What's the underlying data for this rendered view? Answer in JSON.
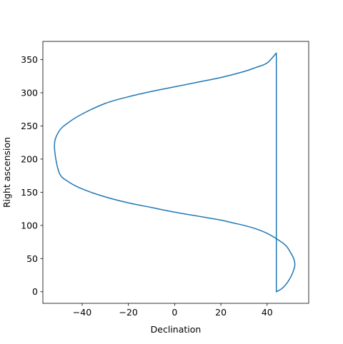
{
  "chart_data": {
    "type": "line",
    "title": "",
    "xlabel": "Declination",
    "ylabel": "Right ascension",
    "xlim": [
      -57,
      58
    ],
    "ylim": [
      -17.5,
      377.5
    ],
    "xticks": [
      -40,
      -20,
      0,
      20,
      40
    ],
    "xtick_labels": [
      "−40",
      "−20",
      "0",
      "20",
      "40"
    ],
    "yticks": [
      0,
      50,
      100,
      150,
      200,
      250,
      300,
      350
    ],
    "ytick_labels": [
      "0",
      "50",
      "100",
      "150",
      "200",
      "250",
      "300",
      "350"
    ],
    "grid": false,
    "legend": "none",
    "series": [
      {
        "color": "#1f77b4",
        "x": [
          44,
          46.5,
          49,
          51,
          52,
          51.5,
          50,
          48,
          44,
          40,
          35,
          30,
          25,
          20,
          15,
          10,
          0,
          -10,
          -20,
          -30,
          -40,
          -46,
          -50,
          -52,
          -50,
          -46,
          -40,
          -30,
          -20,
          -10,
          0,
          10,
          20,
          30,
          35,
          40,
          44,
          44,
          44
        ],
        "y": [
          0,
          5,
          15,
          28,
          40,
          50,
          60,
          70,
          80,
          88,
          95,
          100,
          104,
          108,
          111,
          114,
          120,
          127,
          134,
          143,
          155,
          166,
          180,
          220,
          242,
          255,
          268,
          284,
          294,
          302,
          309,
          316,
          323,
          332,
          338,
          345,
          360,
          200,
          0
        ]
      }
    ]
  }
}
